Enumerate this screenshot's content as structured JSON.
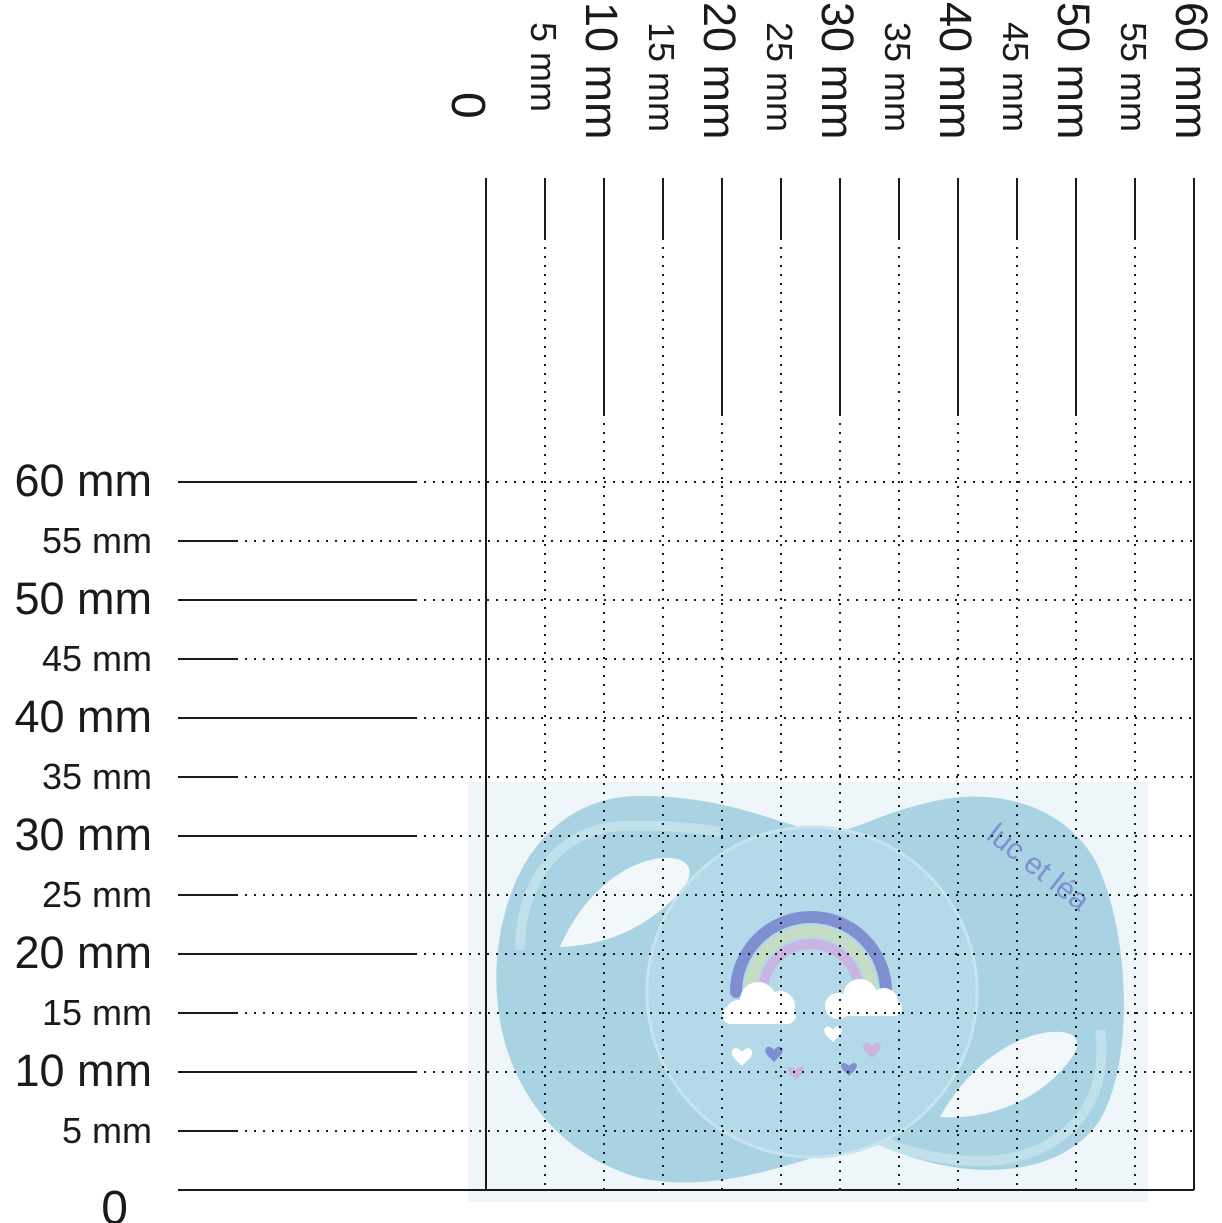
{
  "scale": {
    "unit": "mm",
    "zero_label": "0",
    "ticks": [
      5,
      10,
      15,
      20,
      25,
      30,
      35,
      40,
      45,
      50,
      55,
      60
    ],
    "major_ticks": [
      10,
      20,
      30,
      40,
      50,
      60
    ],
    "x_labels": [
      "5 mm",
      "10 mm",
      "15 mm",
      "20 mm",
      "25 mm",
      "30 mm",
      "35 mm",
      "40 mm",
      "45 mm",
      "50 mm",
      "55 mm",
      "60 mm"
    ],
    "y_labels": [
      "5 mm",
      "10 mm",
      "15 mm",
      "20 mm",
      "25 mm",
      "30 mm",
      "35 mm",
      "40 mm",
      "45 mm",
      "50 mm",
      "55 mm",
      "60 mm"
    ]
  },
  "product": {
    "brand_text": "luc et léa",
    "width_mm": 58,
    "height_mm": 35,
    "colors": {
      "shield": "#a9d3e3",
      "shield_dark": "#9ccbdc",
      "button": "#b6dbe9",
      "backdrop": "#eef6f9",
      "logo": "#7f8fd0",
      "rainbow_outer": "#7f8fd0",
      "rainbow_middle": "#c7dcc5",
      "rainbow_inner": "#c9b4e2"
    },
    "icons": [
      "rainbow-icon",
      "cloud-icon",
      "heart-icon"
    ]
  }
}
